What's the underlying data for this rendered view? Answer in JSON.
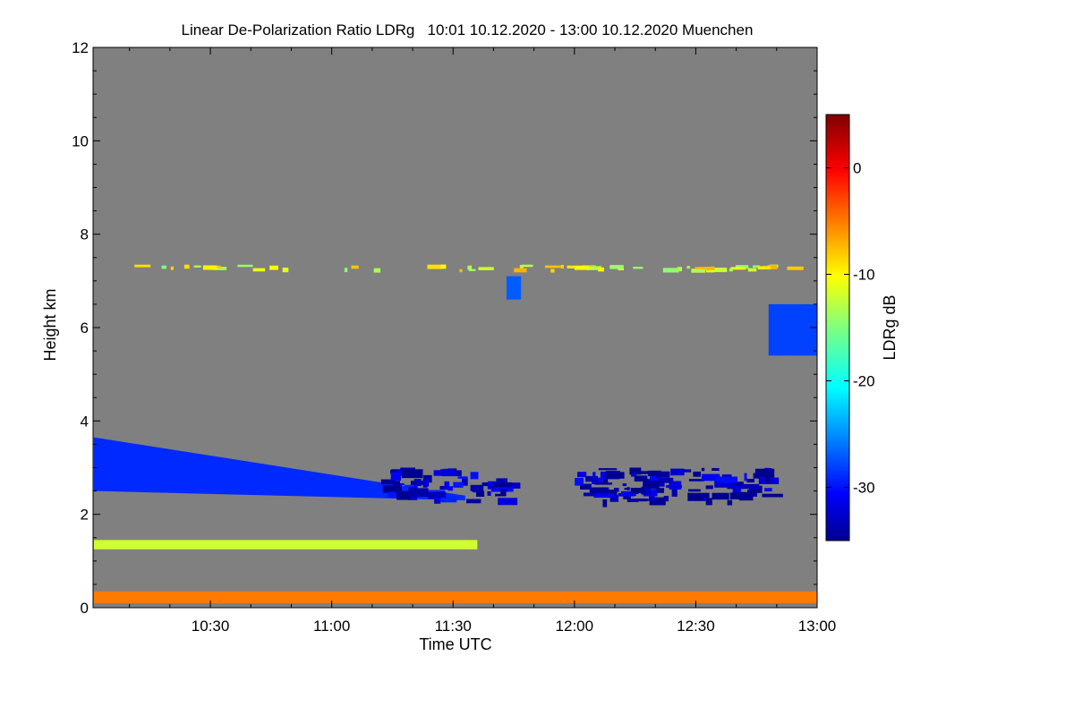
{
  "chart_data": {
    "type": "heatmap",
    "title": "Linear De-Polarization Ratio LDRg   10:01 10.12.2020 - 13:00 10.12.2020 Muenchen",
    "xlabel": "Time UTC",
    "ylabel": "Height km",
    "colorbar_label": "LDRg dB",
    "x_range_hours": [
      10.0167,
      13.0
    ],
    "y_range_km": [
      0,
      12
    ],
    "x_ticks": [
      {
        "value": 10.5,
        "label": "10:30"
      },
      {
        "value": 11.0,
        "label": "11:00"
      },
      {
        "value": 11.5,
        "label": "11:30"
      },
      {
        "value": 12.0,
        "label": "12:00"
      },
      {
        "value": 12.5,
        "label": "12:30"
      },
      {
        "value": 13.0,
        "label": "13:00"
      }
    ],
    "y_ticks": [
      0,
      2,
      4,
      6,
      8,
      10,
      12
    ],
    "colorbar_range_db": [
      -35,
      5
    ],
    "colorbar_ticks": [
      {
        "value": 0,
        "label": "0"
      },
      {
        "value": -10,
        "label": "-10"
      },
      {
        "value": -20,
        "label": "-20"
      },
      {
        "value": -30,
        "label": "-30"
      }
    ],
    "background_color": "#808080",
    "features": [
      {
        "name": "low-cloud-layer",
        "ldr_db": -29,
        "time_start": 10.02,
        "time_end": 11.55,
        "base_start_km": 2.5,
        "base_end_km": 2.3,
        "top_start_km": 3.65,
        "top_end_km": 2.4
      },
      {
        "name": "low-cloud-tail",
        "ldr_db": -33,
        "time_start": 11.2,
        "time_end": 11.7,
        "base_km": 2.3,
        "top_km": 3.0
      },
      {
        "name": "midlevel-fragments",
        "ldr_db": -34,
        "time_start": 12.0,
        "time_end": 12.8,
        "base_km": 2.3,
        "top_km": 3.0
      },
      {
        "name": "upper-fallstreak",
        "ldr_db": -28,
        "time_start": 12.8,
        "time_end": 13.0,
        "base_km": 5.4,
        "top_km": 6.5
      },
      {
        "name": "high-thin-layer",
        "ldr_db": -11,
        "time_start": 10.1,
        "time_end": 12.9,
        "base_km": 7.25,
        "top_km": 7.35
      },
      {
        "name": "virga-streak",
        "ldr_db": -27,
        "time_start": 11.72,
        "time_end": 11.78,
        "base_km": 6.6,
        "top_km": 7.1
      },
      {
        "name": "near-surface-layer",
        "ldr_db": -5,
        "time_start": 10.02,
        "time_end": 13.0,
        "base_km": 0.1,
        "top_km": 0.35
      },
      {
        "name": "aerosol-layer-1.3km",
        "ldr_db": -12,
        "time_start": 10.02,
        "time_end": 11.6,
        "base_km": 1.25,
        "top_km": 1.45
      }
    ]
  }
}
